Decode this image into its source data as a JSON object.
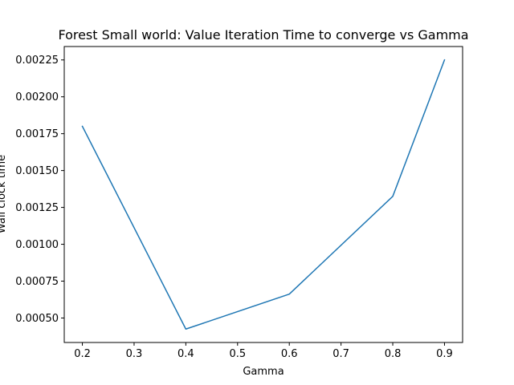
{
  "chart_data": {
    "type": "line",
    "title": "Forest Small world: Value Iteration Time to converge vs Gamma",
    "xlabel": "Gamma",
    "ylabel": "Wall clock time",
    "x": [
      0.2,
      0.4,
      0.6,
      0.8,
      0.9
    ],
    "series": [
      {
        "values": [
          0.0018,
          0.000425,
          0.000662,
          0.001325,
          0.00225
        ]
      }
    ],
    "xlim": [
      0.165,
      0.935
    ],
    "ylim": [
      0.000334,
      0.002341
    ],
    "xticks": [
      0.2,
      0.3,
      0.4,
      0.5,
      0.6,
      0.7,
      0.8,
      0.9
    ],
    "xtick_labels": [
      "0.2",
      "0.3",
      "0.4",
      "0.5",
      "0.6",
      "0.7",
      "0.8",
      "0.9"
    ],
    "yticks": [
      0.0005,
      0.00075,
      0.001,
      0.00125,
      0.0015,
      0.00175,
      0.002,
      0.00225
    ],
    "ytick_labels": [
      "0.00050",
      "0.00075",
      "0.00100",
      "0.00125",
      "0.00150",
      "0.00175",
      "0.00200",
      "0.00225"
    ],
    "grid": false,
    "line_color": "#1f77b4"
  }
}
